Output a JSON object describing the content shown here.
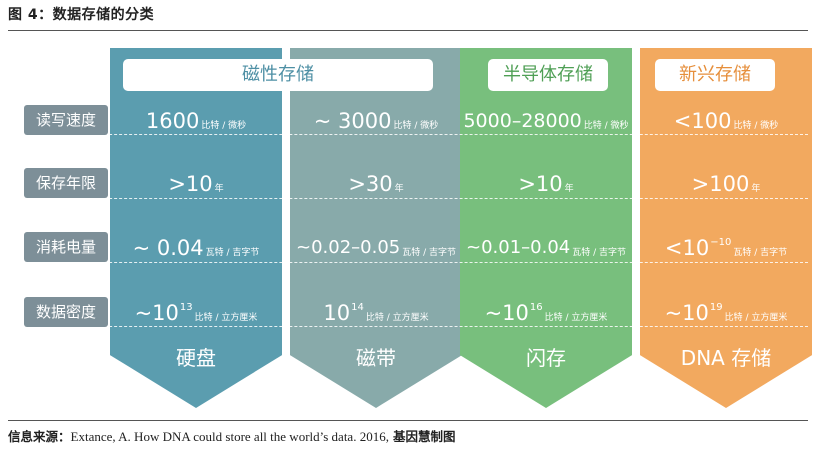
{
  "figure_title": "图 4：数据存储的分类",
  "source": {
    "label": "信息来源：",
    "citation": "Extance, A. How DNA could store all the world’s data. 2016,",
    "credit": "基因慧制图"
  },
  "headers": {
    "magnetic": "磁性存储",
    "semiconductor": "半导体存储",
    "emerging": "新兴存储"
  },
  "rows": [
    "读写速度",
    "保存年限",
    "消耗电量",
    "数据密度"
  ],
  "columns": [
    {
      "name": "硬盘",
      "speed": {
        "value": "1600",
        "unit": "比特 / 微秒"
      },
      "lifetime": {
        "value": ">10",
        "unit": "年"
      },
      "power": {
        "value": "~ 0.04",
        "unit": "瓦特 / 吉字节"
      },
      "density": {
        "base": "~10",
        "exp": "13",
        "unit": "比特 / 立方厘米"
      }
    },
    {
      "name": "磁带",
      "speed": {
        "value": "~ 3000",
        "unit": "比特 / 微秒"
      },
      "lifetime": {
        "value": ">30",
        "unit": "年"
      },
      "power": {
        "value": "~0.02–0.05",
        "unit": "瓦特 / 吉字节"
      },
      "density": {
        "base": "10",
        "exp": "14",
        "unit": "比特 / 立方厘米"
      }
    },
    {
      "name": "闪存",
      "speed": {
        "value": "5000–28000",
        "unit": "比特 / 微秒"
      },
      "lifetime": {
        "value": ">10",
        "unit": "年"
      },
      "power": {
        "value": "~0.01–0.04",
        "unit": "瓦特 / 吉字节"
      },
      "density": {
        "base": "~10",
        "exp": "16",
        "unit": "比特 / 立方厘米"
      }
    },
    {
      "name": "DNA 存储",
      "speed": {
        "value": "<100",
        "unit": "比特 / 微秒"
      },
      "lifetime": {
        "value": ">100",
        "unit": "年"
      },
      "power": {
        "base": "<10",
        "exp": "−10",
        "unit": "瓦特 / 吉字节"
      },
      "density": {
        "base": "~10",
        "exp": "19",
        "unit": "比特 / 立方厘米"
      }
    }
  ],
  "colors": {
    "hard_disk": "#5b9daf",
    "tape": "#88aaaa",
    "flash": "#78bf7d",
    "dna": "#f2a95f",
    "row_label": "#7d8f98"
  }
}
